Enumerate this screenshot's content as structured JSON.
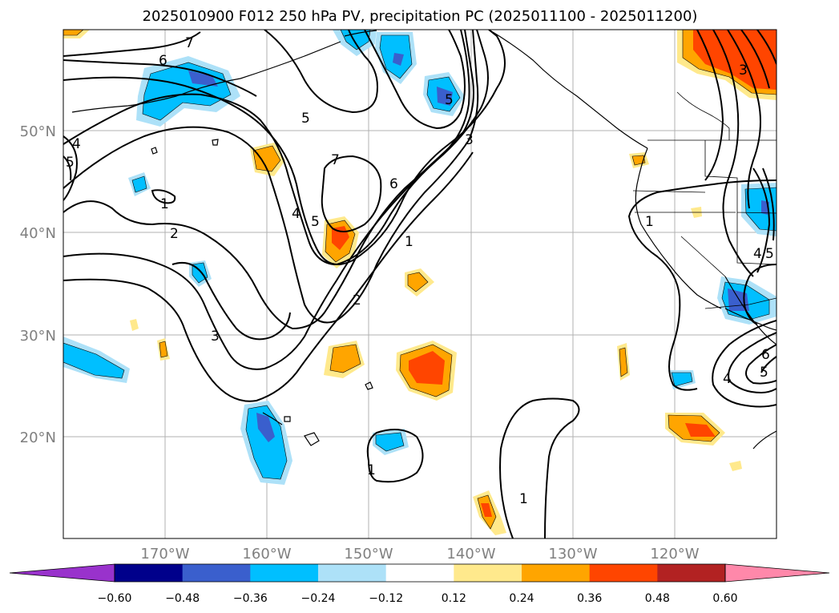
{
  "title": "2025010900 F012 250 hPa PV, precipitation PC (2025011100 - 2025011200)",
  "lat_labels": [
    "50°N",
    "40°N",
    "30°N",
    "20°N"
  ],
  "lon_labels": [
    "170°W",
    "160°W",
    "150°W",
    "140°W",
    "130°W",
    "120°W"
  ],
  "contour_labels": [
    "7",
    "6",
    "5",
    "4",
    "5",
    "1",
    "2",
    "3",
    "5",
    "4",
    "7",
    "6",
    "5",
    "2",
    "1",
    "3",
    "1",
    "1",
    "1",
    "4",
    "5",
    "6",
    "5",
    "4",
    "3"
  ],
  "colorbar": {
    "tick_labels": [
      "−0.60",
      "−0.48",
      "−0.36",
      "−0.24",
      "−0.12",
      "0.12",
      "0.24",
      "0.36",
      "0.48",
      "0.60"
    ],
    "colors": [
      "#9932CC",
      "#00008B",
      "#3A5FCD",
      "#00BFFF",
      "#ADE1F8",
      "#FFFFFF",
      "#FFE98C",
      "#FFA500",
      "#FF4500",
      "#B22222",
      "#FF88AA"
    ]
  },
  "map_colors": {
    "blue_outer": "#ADE1F8",
    "blue_mid": "#00BFFF",
    "blue_inner": "#3A5FCD",
    "orange_outer": "#FFE98C",
    "orange_mid": "#FFA500",
    "orange_inner": "#FF4500"
  }
}
